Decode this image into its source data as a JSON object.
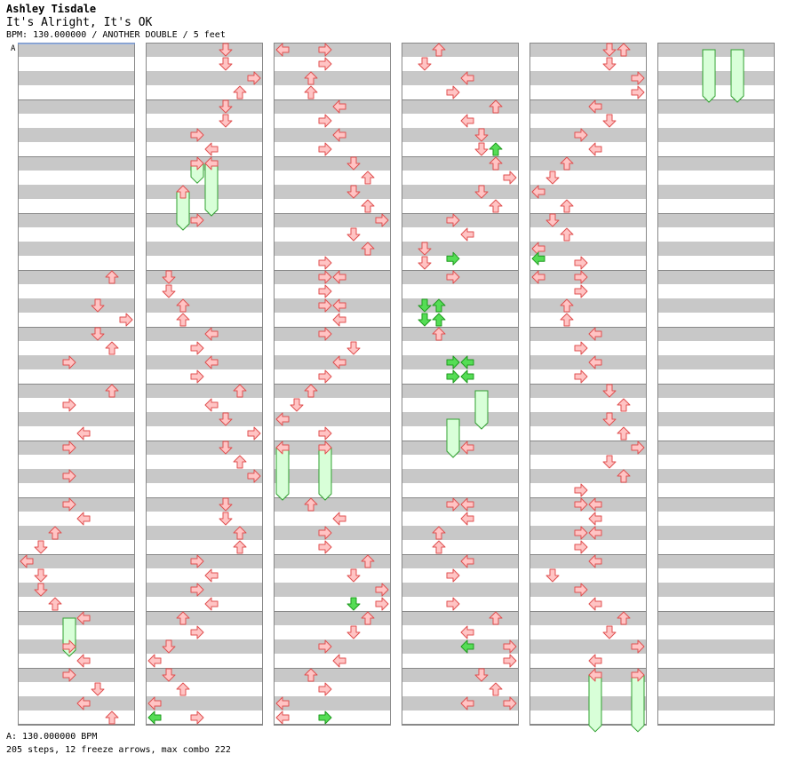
{
  "header": {
    "artist": "Ashley Tisdale",
    "title": "It's Alright, It's OK",
    "meta": "BPM: 130.000000 / ANOTHER DOUBLE / 5 feet"
  },
  "footer": {
    "bpm": "A: 130.000000 BPM",
    "summary": "205 steps, 12 freeze arrows, max combo 222"
  },
  "chart_data": {
    "type": "step-chart",
    "bpm_marker": {
      "label": "A",
      "beat": 0
    },
    "lanes": [
      "P1-left",
      "P1-down",
      "P1-up",
      "P1-right",
      "P2-left",
      "P2-down",
      "P2-up",
      "P2-right"
    ],
    "colors": {
      "arrow_fill": "#ffc4c4",
      "arrow_stroke": "#e05050",
      "special_fill": "#55dd55",
      "special_stroke": "#1f9a1f",
      "freeze_fill": "#d8ffd8",
      "freeze_stroke": "#30a030",
      "stripe": "#c8c8c8",
      "measure_line": "#888888",
      "bpm_line": "#6aa0ff"
    },
    "measures_per_column": 12,
    "columns": [
      {
        "arrows": [
          {
            "beat": 16,
            "lane": 6
          },
          {
            "beat": 18,
            "lane": 5
          },
          {
            "beat": 19,
            "lane": 7
          },
          {
            "beat": 20,
            "lane": 5
          },
          {
            "beat": 21,
            "lane": 6
          },
          {
            "beat": 22,
            "lane": 3
          },
          {
            "beat": 24,
            "lane": 6
          },
          {
            "beat": 25,
            "lane": 3
          },
          {
            "beat": 27,
            "lane": 4
          },
          {
            "beat": 28,
            "lane": 3
          },
          {
            "beat": 30,
            "lane": 3
          },
          {
            "beat": 32,
            "lane": 3
          },
          {
            "beat": 33,
            "lane": 4
          },
          {
            "beat": 34,
            "lane": 2
          },
          {
            "beat": 35,
            "lane": 1
          },
          {
            "beat": 36,
            "lane": 0
          },
          {
            "beat": 37,
            "lane": 1
          },
          {
            "beat": 38,
            "lane": 1
          },
          {
            "beat": 39,
            "lane": 2
          },
          {
            "beat": 40,
            "lane": 4
          },
          {
            "beat": 42,
            "lane": 3
          },
          {
            "beat": 43,
            "lane": 4
          },
          {
            "beat": 44,
            "lane": 3
          },
          {
            "beat": 45,
            "lane": 5
          },
          {
            "beat": 46,
            "lane": 4
          },
          {
            "beat": 47,
            "lane": 6
          }
        ],
        "freezes": [
          {
            "start": 40,
            "end": 42.5,
            "lane": 3
          }
        ]
      },
      {
        "arrows": [
          {
            "beat": 0,
            "lane": 5
          },
          {
            "beat": 1,
            "lane": 5
          },
          {
            "beat": 2,
            "lane": 7
          },
          {
            "beat": 3,
            "lane": 6
          },
          {
            "beat": 4,
            "lane": 5
          },
          {
            "beat": 5,
            "lane": 5
          },
          {
            "beat": 6,
            "lane": 3
          },
          {
            "beat": 7,
            "lane": 4
          },
          {
            "beat": 8,
            "lane": 3
          },
          {
            "beat": 8,
            "lane": 4
          },
          {
            "beat": 10,
            "lane": 2
          },
          {
            "beat": 12,
            "lane": 3
          },
          {
            "beat": 16,
            "lane": 1
          },
          {
            "beat": 17,
            "lane": 1
          },
          {
            "beat": 18,
            "lane": 2
          },
          {
            "beat": 19,
            "lane": 2
          },
          {
            "beat": 20,
            "lane": 4
          },
          {
            "beat": 21,
            "lane": 3
          },
          {
            "beat": 22,
            "lane": 4
          },
          {
            "beat": 23,
            "lane": 3
          },
          {
            "beat": 24,
            "lane": 6
          },
          {
            "beat": 25,
            "lane": 4
          },
          {
            "beat": 26,
            "lane": 5
          },
          {
            "beat": 27,
            "lane": 7
          },
          {
            "beat": 28,
            "lane": 5
          },
          {
            "beat": 29,
            "lane": 6
          },
          {
            "beat": 30,
            "lane": 7
          },
          {
            "beat": 32,
            "lane": 5
          },
          {
            "beat": 33,
            "lane": 5
          },
          {
            "beat": 34,
            "lane": 6
          },
          {
            "beat": 35,
            "lane": 6
          },
          {
            "beat": 36,
            "lane": 3
          },
          {
            "beat": 37,
            "lane": 4
          },
          {
            "beat": 38,
            "lane": 3
          },
          {
            "beat": 39,
            "lane": 4
          },
          {
            "beat": 40,
            "lane": 2
          },
          {
            "beat": 41,
            "lane": 3
          },
          {
            "beat": 42,
            "lane": 1
          },
          {
            "beat": 43,
            "lane": 0
          },
          {
            "beat": 44,
            "lane": 1
          },
          {
            "beat": 45,
            "lane": 2
          },
          {
            "beat": 46,
            "lane": 0
          },
          {
            "beat": 47,
            "lane": 0,
            "special": true
          },
          {
            "beat": 47,
            "lane": 3
          }
        ],
        "freezes": [
          {
            "start": 8,
            "end": 9.2,
            "lane": 3
          },
          {
            "start": 8,
            "end": 11.5,
            "lane": 4
          },
          {
            "start": 10,
            "end": 12.5,
            "lane": 2
          }
        ]
      },
      {
        "arrows": [
          {
            "beat": 0,
            "lane": 0
          },
          {
            "beat": 0,
            "lane": 3
          },
          {
            "beat": 1,
            "lane": 3
          },
          {
            "beat": 2,
            "lane": 2
          },
          {
            "beat": 3,
            "lane": 2
          },
          {
            "beat": 4,
            "lane": 4
          },
          {
            "beat": 5,
            "lane": 3
          },
          {
            "beat": 6,
            "lane": 4
          },
          {
            "beat": 7,
            "lane": 3
          },
          {
            "beat": 8,
            "lane": 5
          },
          {
            "beat": 9,
            "lane": 6
          },
          {
            "beat": 10,
            "lane": 5
          },
          {
            "beat": 11,
            "lane": 6
          },
          {
            "beat": 12,
            "lane": 7
          },
          {
            "beat": 13,
            "lane": 5
          },
          {
            "beat": 14,
            "lane": 6
          },
          {
            "beat": 15,
            "lane": 3
          },
          {
            "beat": 16,
            "lane": 3
          },
          {
            "beat": 16,
            "lane": 4
          },
          {
            "beat": 17,
            "lane": 3
          },
          {
            "beat": 18,
            "lane": 3
          },
          {
            "beat": 18,
            "lane": 4
          },
          {
            "beat": 19,
            "lane": 4
          },
          {
            "beat": 20,
            "lane": 3
          },
          {
            "beat": 21,
            "lane": 5
          },
          {
            "beat": 22,
            "lane": 4
          },
          {
            "beat": 23,
            "lane": 3
          },
          {
            "beat": 24,
            "lane": 2
          },
          {
            "beat": 25,
            "lane": 1
          },
          {
            "beat": 26,
            "lane": 0
          },
          {
            "beat": 27,
            "lane": 3
          },
          {
            "beat": 28,
            "lane": 0
          },
          {
            "beat": 28,
            "lane": 3
          },
          {
            "beat": 32,
            "lane": 2
          },
          {
            "beat": 33,
            "lane": 4
          },
          {
            "beat": 34,
            "lane": 3
          },
          {
            "beat": 35,
            "lane": 3
          },
          {
            "beat": 36,
            "lane": 6
          },
          {
            "beat": 37,
            "lane": 5
          },
          {
            "beat": 38,
            "lane": 7
          },
          {
            "beat": 39,
            "lane": 5,
            "special": true
          },
          {
            "beat": 39,
            "lane": 7
          },
          {
            "beat": 40,
            "lane": 6
          },
          {
            "beat": 41,
            "lane": 5
          },
          {
            "beat": 42,
            "lane": 3
          },
          {
            "beat": 43,
            "lane": 4
          },
          {
            "beat": 44,
            "lane": 2
          },
          {
            "beat": 45,
            "lane": 3
          },
          {
            "beat": 46,
            "lane": 0
          },
          {
            "beat": 47,
            "lane": 0
          },
          {
            "beat": 47,
            "lane": 3,
            "special": true
          }
        ],
        "freezes": [
          {
            "start": 28,
            "end": 31.5,
            "lane": 0
          },
          {
            "start": 28,
            "end": 31.5,
            "lane": 3
          }
        ]
      },
      {
        "arrows": [
          {
            "beat": 0,
            "lane": 2
          },
          {
            "beat": 1,
            "lane": 1
          },
          {
            "beat": 2,
            "lane": 4
          },
          {
            "beat": 3,
            "lane": 3
          },
          {
            "beat": 4,
            "lane": 6
          },
          {
            "beat": 5,
            "lane": 4
          },
          {
            "beat": 6,
            "lane": 5
          },
          {
            "beat": 7,
            "lane": 5
          },
          {
            "beat": 7,
            "lane": 6,
            "special": true
          },
          {
            "beat": 8,
            "lane": 6
          },
          {
            "beat": 9,
            "lane": 7
          },
          {
            "beat": 10,
            "lane": 5
          },
          {
            "beat": 11,
            "lane": 6
          },
          {
            "beat": 12,
            "lane": 3
          },
          {
            "beat": 13,
            "lane": 4
          },
          {
            "beat": 14,
            "lane": 1
          },
          {
            "beat": 14.7,
            "lane": 3,
            "special": true
          },
          {
            "beat": 15,
            "lane": 1
          },
          {
            "beat": 16,
            "lane": 3
          },
          {
            "beat": 18,
            "lane": 1,
            "special": true
          },
          {
            "beat": 18,
            "lane": 2,
            "special": true
          },
          {
            "beat": 19,
            "lane": 1,
            "special": true
          },
          {
            "beat": 19,
            "lane": 2,
            "special": true
          },
          {
            "beat": 20,
            "lane": 2
          },
          {
            "beat": 22,
            "lane": 3,
            "special": true
          },
          {
            "beat": 22,
            "lane": 4,
            "special": true
          },
          {
            "beat": 23,
            "lane": 3,
            "special": true
          },
          {
            "beat": 23,
            "lane": 4,
            "special": true
          },
          {
            "beat": 28,
            "lane": 4
          },
          {
            "beat": 32,
            "lane": 3
          },
          {
            "beat": 32,
            "lane": 4
          },
          {
            "beat": 33,
            "lane": 4
          },
          {
            "beat": 34,
            "lane": 2
          },
          {
            "beat": 35,
            "lane": 2
          },
          {
            "beat": 36,
            "lane": 4
          },
          {
            "beat": 37,
            "lane": 3
          },
          {
            "beat": 39,
            "lane": 3
          },
          {
            "beat": 40,
            "lane": 6
          },
          {
            "beat": 41,
            "lane": 4
          },
          {
            "beat": 42,
            "lane": 4,
            "special": true
          },
          {
            "beat": 42,
            "lane": 7
          },
          {
            "beat": 43,
            "lane": 7
          },
          {
            "beat": 44,
            "lane": 5
          },
          {
            "beat": 45,
            "lane": 6
          },
          {
            "beat": 46,
            "lane": 4
          },
          {
            "beat": 46,
            "lane": 7
          }
        ],
        "freezes": [
          {
            "start": 24,
            "end": 26.5,
            "lane": 5
          },
          {
            "start": 26,
            "end": 28.5,
            "lane": 3
          }
        ]
      },
      {
        "arrows": [
          {
            "beat": 0,
            "lane": 5
          },
          {
            "beat": 0,
            "lane": 6
          },
          {
            "beat": 1,
            "lane": 5
          },
          {
            "beat": 2,
            "lane": 7
          },
          {
            "beat": 3,
            "lane": 7
          },
          {
            "beat": 4,
            "lane": 4
          },
          {
            "beat": 5,
            "lane": 5
          },
          {
            "beat": 6,
            "lane": 3
          },
          {
            "beat": 7,
            "lane": 4
          },
          {
            "beat": 8,
            "lane": 2
          },
          {
            "beat": 9,
            "lane": 1
          },
          {
            "beat": 10,
            "lane": 0
          },
          {
            "beat": 11,
            "lane": 2
          },
          {
            "beat": 12,
            "lane": 1
          },
          {
            "beat": 13,
            "lane": 2
          },
          {
            "beat": 14,
            "lane": 0
          },
          {
            "beat": 14.7,
            "lane": 0,
            "special": true
          },
          {
            "beat": 15,
            "lane": 3
          },
          {
            "beat": 16,
            "lane": 0
          },
          {
            "beat": 16,
            "lane": 3
          },
          {
            "beat": 17,
            "lane": 3
          },
          {
            "beat": 18,
            "lane": 2
          },
          {
            "beat": 19,
            "lane": 2
          },
          {
            "beat": 20,
            "lane": 4
          },
          {
            "beat": 21,
            "lane": 3
          },
          {
            "beat": 22,
            "lane": 4
          },
          {
            "beat": 23,
            "lane": 3
          },
          {
            "beat": 24,
            "lane": 5
          },
          {
            "beat": 25,
            "lane": 6
          },
          {
            "beat": 26,
            "lane": 5
          },
          {
            "beat": 27,
            "lane": 6
          },
          {
            "beat": 28,
            "lane": 7
          },
          {
            "beat": 29,
            "lane": 5
          },
          {
            "beat": 30,
            "lane": 6
          },
          {
            "beat": 31,
            "lane": 3
          },
          {
            "beat": 32,
            "lane": 3
          },
          {
            "beat": 32,
            "lane": 4
          },
          {
            "beat": 33,
            "lane": 4
          },
          {
            "beat": 34,
            "lane": 3
          },
          {
            "beat": 34,
            "lane": 4
          },
          {
            "beat": 35,
            "lane": 3
          },
          {
            "beat": 36,
            "lane": 4
          },
          {
            "beat": 37,
            "lane": 1
          },
          {
            "beat": 38,
            "lane": 3
          },
          {
            "beat": 39,
            "lane": 4
          },
          {
            "beat": 40,
            "lane": 6
          },
          {
            "beat": 41,
            "lane": 5
          },
          {
            "beat": 42,
            "lane": 7
          },
          {
            "beat": 43,
            "lane": 4
          },
          {
            "beat": 44,
            "lane": 4
          },
          {
            "beat": 44,
            "lane": 7
          }
        ],
        "freezes": [
          {
            "start": 44,
            "end": 47.8,
            "lane": 4
          },
          {
            "start": 44,
            "end": 47.8,
            "lane": 7
          }
        ]
      },
      {
        "arrows": [],
        "freezes": [
          {
            "start": 0,
            "end": 3.5,
            "lane": 3
          },
          {
            "start": 0,
            "end": 3.5,
            "lane": 5
          }
        ]
      }
    ]
  }
}
